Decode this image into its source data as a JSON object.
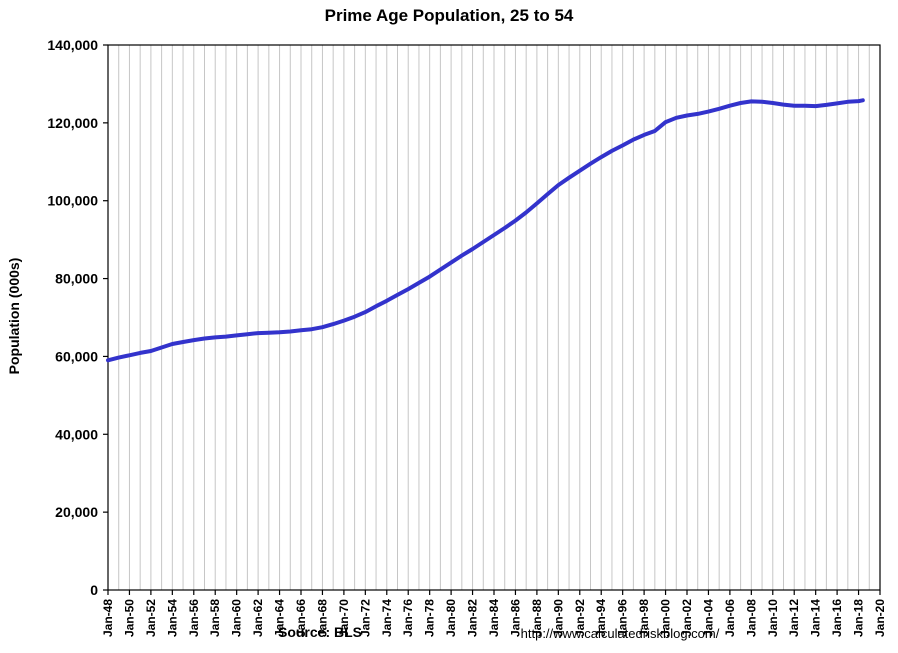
{
  "chart_data": {
    "type": "line",
    "title": "Prime Age Population, 25 to 54",
    "ylabel": "Population (000s)",
    "source": "Source: BLS",
    "url": "http://www.calculatedriskblog.com/",
    "line_color": "#3333CC",
    "grid_color": "#C6C6C6",
    "axis_color": "#000000",
    "xlim": [
      1948,
      2020
    ],
    "ylim": [
      0,
      140000
    ],
    "x_gridline_step": 1,
    "grid": "vertical-only",
    "legend": "none",
    "x_tick_years": [
      1948,
      1950,
      1952,
      1954,
      1956,
      1958,
      1960,
      1962,
      1964,
      1966,
      1968,
      1970,
      1972,
      1974,
      1976,
      1978,
      1980,
      1982,
      1984,
      1986,
      1988,
      1990,
      1992,
      1994,
      1996,
      1998,
      2000,
      2002,
      2004,
      2006,
      2008,
      2010,
      2012,
      2014,
      2016,
      2018,
      2020
    ],
    "x_tick_labels": [
      "Jan-48",
      "Jan-50",
      "Jan-52",
      "Jan-54",
      "Jan-56",
      "Jan-58",
      "Jan-60",
      "Jan-62",
      "Jan-64",
      "Jan-66",
      "Jan-68",
      "Jan-70",
      "Jan-72",
      "Jan-74",
      "Jan-76",
      "Jan-78",
      "Jan-80",
      "Jan-82",
      "Jan-84",
      "Jan-86",
      "Jan-88",
      "Jan-90",
      "Jan-92",
      "Jan-94",
      "Jan-96",
      "Jan-98",
      "Jan-00",
      "Jan-02",
      "Jan-04",
      "Jan-06",
      "Jan-08",
      "Jan-10",
      "Jan-12",
      "Jan-14",
      "Jan-16",
      "Jan-18",
      "Jan-20"
    ],
    "y_tick_values": [
      0,
      20000,
      40000,
      60000,
      80000,
      100000,
      120000,
      140000
    ],
    "y_tick_labels": [
      "0",
      "20,000",
      "40,000",
      "60,000",
      "80,000",
      "100,000",
      "120,000",
      "140,000"
    ],
    "series": [
      {
        "name": "Prime Age Population (000s)",
        "x": [
          1948,
          1949,
          1950,
          1951,
          1952,
          1953,
          1954,
          1955,
          1956,
          1957,
          1958,
          1959,
          1960,
          1961,
          1962,
          1963,
          1964,
          1965,
          1966,
          1967,
          1968,
          1969,
          1970,
          1971,
          1972,
          1973,
          1974,
          1975,
          1976,
          1977,
          1978,
          1979,
          1980,
          1981,
          1982,
          1983,
          1984,
          1985,
          1986,
          1987,
          1988,
          1989,
          1990,
          1991,
          1992,
          1993,
          1994,
          1995,
          1996,
          1997,
          1998,
          1999,
          2000,
          2001,
          2002,
          2003,
          2004,
          2005,
          2006,
          2007,
          2008,
          2009,
          2010,
          2011,
          2012,
          2013,
          2014,
          2015,
          2016,
          2017,
          2018,
          2018.4
        ],
        "y": [
          59000,
          59700,
          60300,
          60900,
          61400,
          62300,
          63200,
          63700,
          64200,
          64600,
          64900,
          65100,
          65400,
          65700,
          66000,
          66100,
          66200,
          66400,
          66700,
          67000,
          67500,
          68300,
          69200,
          70200,
          71400,
          72900,
          74300,
          75800,
          77300,
          78900,
          80500,
          82300,
          84100,
          85900,
          87600,
          89400,
          91200,
          93000,
          94900,
          97000,
          99300,
          101700,
          104000,
          105900,
          107700,
          109500,
          111200,
          112800,
          114200,
          115700,
          116900,
          117900,
          120200,
          121300,
          121900,
          122300,
          122900,
          123600,
          124400,
          125100,
          125500,
          125400,
          125100,
          124700,
          124400,
          124400,
          124300,
          124600,
          125000,
          125400,
          125600,
          125800
        ]
      }
    ]
  }
}
